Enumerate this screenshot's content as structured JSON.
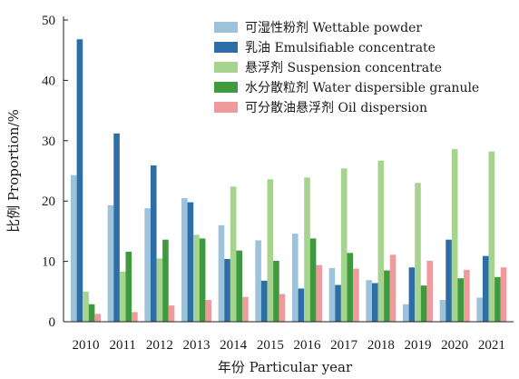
{
  "chart_data": {
    "type": "bar",
    "categories": [
      "2010",
      "2011",
      "2012",
      "2013",
      "2014",
      "2015",
      "2016",
      "2017",
      "2018",
      "2019",
      "2020",
      "2021"
    ],
    "series": [
      {
        "name": "可湿性粉剂 Wettable powder",
        "color": "#9dc3da",
        "values": [
          24.3,
          19.3,
          18.8,
          20.5,
          16.0,
          13.5,
          14.6,
          8.9,
          6.9,
          2.9,
          3.6,
          4.0
        ]
      },
      {
        "name": "乳油 Emulsifiable concentrate",
        "color": "#2e6ea6",
        "values": [
          46.8,
          31.2,
          25.9,
          19.8,
          10.4,
          6.8,
          5.5,
          6.1,
          6.4,
          9.0,
          13.6,
          10.9
        ]
      },
      {
        "name": "悬浮剂 Suspension concentrate",
        "color": "#a6d48f",
        "values": [
          5.0,
          8.3,
          10.5,
          14.4,
          22.4,
          23.6,
          23.9,
          25.4,
          26.7,
          23.0,
          28.6,
          28.2
        ]
      },
      {
        "name": "水分散粒剂 Water dispersible granule",
        "color": "#3f9a3f",
        "values": [
          2.9,
          11.6,
          13.6,
          13.8,
          11.8,
          10.1,
          13.8,
          11.4,
          8.5,
          6.0,
          7.2,
          7.4
        ]
      },
      {
        "name": "可分散油悬浮剂 Oil dispersion",
        "color": "#ef9a9d",
        "values": [
          1.3,
          1.6,
          2.7,
          3.6,
          4.1,
          4.6,
          9.4,
          8.8,
          11.1,
          10.1,
          8.6,
          9.0
        ]
      }
    ],
    "xlabel": "年份 Particular year",
    "ylabel": "比例 Proportion/%",
    "ylim": [
      0,
      50
    ],
    "yticks": [
      "0",
      "10",
      "20",
      "30",
      "40",
      "50"
    ],
    "legend_position": "top-right",
    "grid": false
  }
}
